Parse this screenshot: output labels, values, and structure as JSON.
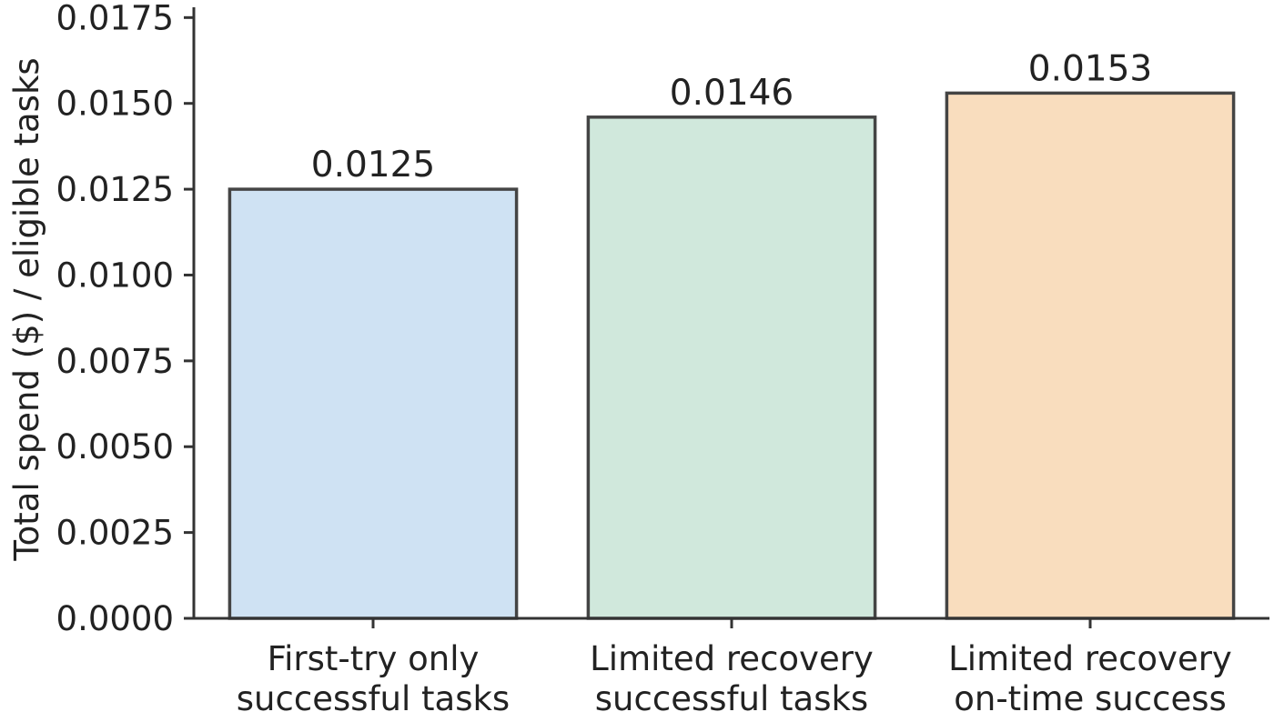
{
  "chart_data": {
    "type": "bar",
    "categories": [
      [
        "First-try only",
        "successful tasks"
      ],
      [
        "Limited recovery",
        "successful tasks"
      ],
      [
        "Limited recovery",
        "on-time success"
      ]
    ],
    "values": [
      0.0125,
      0.0146,
      0.0153
    ],
    "value_labels": [
      "0.0125",
      "0.0146",
      "0.0153"
    ],
    "colors": [
      "#cfe2f3",
      "#d0e8dc",
      "#f9ddbe"
    ],
    "title": "",
    "xlabel": "",
    "ylabel": "Total spend ($) / eligible tasks",
    "ylim": [
      0,
      0.0178
    ],
    "yticks": [
      0,
      0.0025,
      0.005,
      0.0075,
      0.01,
      0.0125,
      0.015,
      0.0175
    ],
    "ytick_labels": [
      "0.0000",
      "0.0025",
      "0.0050",
      "0.0075",
      "0.0100",
      "0.0125",
      "0.0150",
      "0.0175"
    ],
    "grid": false,
    "legend": "none"
  }
}
